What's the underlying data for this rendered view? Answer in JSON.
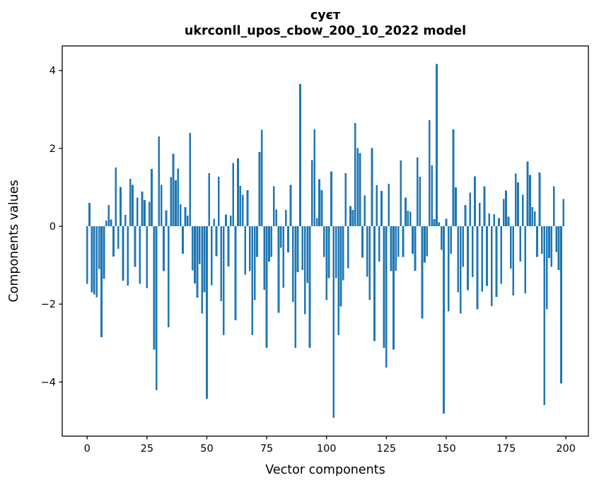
{
  "title": {
    "line1": "суєт",
    "line2": "ukrconll_upos_cbow_200_10_2022 model"
  },
  "chart_data": {
    "type": "bar",
    "title": "суєт — ukrconll_upos_cbow_200_10_2022 model",
    "xlabel": "Vector components",
    "ylabel": "Components values",
    "x_start": 0,
    "n_bars": 200,
    "bar_width": 0.8,
    "bar_color": "#1f77b4",
    "grid": false,
    "legend": null,
    "xlim": [
      -10.4,
      209.4
    ],
    "ylim": [
      -5.39,
      4.63
    ],
    "xticks": [
      0,
      25,
      50,
      75,
      100,
      125,
      150,
      175,
      200
    ],
    "ytick_values": [
      -4,
      -2,
      0,
      2,
      4
    ],
    "ytick_labels": [
      "−4",
      "−2",
      "0",
      "2",
      "4"
    ],
    "values": [
      -1.48,
      0.6,
      -1.7,
      -1.75,
      -1.82,
      -1.1,
      -2.85,
      -1.35,
      0.15,
      0.55,
      0.17,
      -0.78,
      1.51,
      -0.58,
      1.01,
      -1.4,
      0.29,
      -1.52,
      1.22,
      1.06,
      -1.04,
      0.74,
      -1.48,
      0.89,
      0.67,
      -1.59,
      0.63,
      1.47,
      -3.17,
      -4.21,
      2.31,
      1.06,
      -1.15,
      0.41,
      -2.59,
      1.26,
      1.86,
      1.18,
      1.48,
      0.56,
      -0.71,
      0.49,
      0.27,
      2.4,
      -1.13,
      -1.47,
      -1.83,
      -0.97,
      -2.24,
      -1.7,
      -4.43,
      1.36,
      -1.51,
      0.19,
      -0.77,
      1.27,
      -1.92,
      -2.79,
      0.3,
      -1.03,
      0.27,
      1.63,
      -2.41,
      1.74,
      1.04,
      0.81,
      -1.24,
      0.93,
      -1.15,
      -2.79,
      -1.9,
      -0.79,
      1.91,
      2.48,
      -1.63,
      -3.12,
      -0.91,
      -0.79,
      1.03,
      0.43,
      -2.22,
      -0.55,
      -1.58,
      0.42,
      -0.67,
      1.06,
      -1.94,
      -3.12,
      -1.18,
      3.65,
      -1.12,
      -2.26,
      -1.46,
      -3.12,
      1.7,
      2.49,
      0.21,
      1.21,
      0.93,
      -0.79,
      -1.9,
      -1.33,
      1.41,
      -4.92,
      -1.33,
      -2.79,
      -2.06,
      -1.39,
      1.36,
      -1.08,
      0.52,
      0.42,
      2.65,
      2.01,
      1.88,
      -0.81,
      0.79,
      -1.3,
      -1.9,
      2.01,
      -2.95,
      1.05,
      -0.91,
      0.91,
      -3.12,
      -3.63,
      1.09,
      -1.15,
      -3.17,
      -1.14,
      -0.79,
      1.69,
      -0.79,
      0.74,
      0.4,
      0.37,
      -0.71,
      -1.14,
      1.77,
      1.27,
      -2.37,
      -0.93,
      -0.77,
      2.72,
      1.56,
      0.18,
      4.17,
      0.1,
      -0.61,
      -4.81,
      0.19,
      -2.19,
      -0.71,
      2.49,
      1.0,
      -1.7,
      -2.24,
      -1.04,
      0.55,
      -1.64,
      0.86,
      -1.31,
      1.28,
      -2.13,
      0.6,
      -1.68,
      1.03,
      -1.53,
      0.33,
      -2.05,
      0.31,
      -1.81,
      0.21,
      -1.48,
      0.7,
      0.92,
      0.25,
      -1.09,
      -1.78,
      1.35,
      1.13,
      -0.91,
      0.81,
      -1.72,
      1.66,
      1.32,
      0.49,
      0.38,
      -0.79,
      1.38,
      -0.71,
      -4.59,
      -2.13,
      -0.82,
      -1.04,
      1.03,
      -0.66,
      -1.12,
      -4.04,
      0.7
    ]
  }
}
